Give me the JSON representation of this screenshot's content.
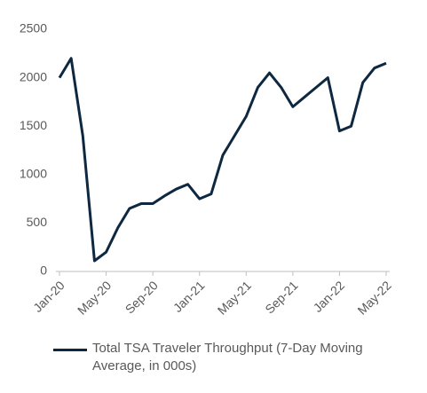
{
  "chart_data": {
    "type": "line",
    "categories": [
      "Jan-20",
      null,
      null,
      null,
      "May-20",
      null,
      null,
      null,
      "Sep-20",
      null,
      null,
      null,
      "Jan-21",
      null,
      null,
      null,
      "May-21",
      null,
      null,
      null,
      "Sep-21",
      null,
      null,
      null,
      "Jan-22",
      null,
      null,
      null,
      "May-22"
    ],
    "series": [
      {
        "name": "Total TSA Traveler Throughput (7-Day Moving Average, in 000s)",
        "color": "#0d2840",
        "values": [
          2000,
          2200,
          1400,
          110,
          200,
          450,
          650,
          700,
          700,
          780,
          850,
          900,
          750,
          800,
          1200,
          1400,
          1600,
          1900,
          2050,
          1900,
          1700,
          1800,
          1900,
          2000,
          1450,
          1500,
          1950,
          2100,
          2150
        ]
      }
    ],
    "ylim": [
      0,
      2500
    ],
    "yticks": [
      0,
      500,
      1000,
      1500,
      2000,
      2500
    ],
    "legend": "bottom"
  }
}
